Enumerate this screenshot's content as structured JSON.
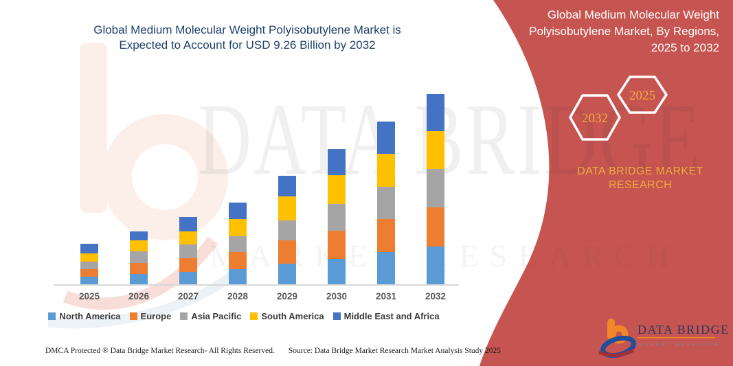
{
  "title": {
    "line1": "Global Medium Molecular Weight Polyisobutylene Market is",
    "line2": "Expected to Account for USD 9.26 Billion by 2032"
  },
  "right_panel": {
    "title_line1": "Global Medium Molecular Weight",
    "title_line2": "Polyisobutylene Market, By Regions,",
    "title_line3": "2025 to 2032",
    "hexagons": [
      {
        "label": "2032"
      },
      {
        "label": "2025"
      }
    ],
    "brand_line1": "DATA BRIDGE MARKET",
    "brand_line2": "RESEARCH",
    "logo": {
      "title": "DATA BRIDGE",
      "subtitle": "MARKET RESEARCH"
    }
  },
  "watermark": {
    "line1": "DATA BRIDGE",
    "line2": "MARKET RESEARCH"
  },
  "footer": {
    "left": "DMCA Protected ® Data Bridge Market Research-  All Rights Reserved.",
    "right": "Source: Data Bridge Market Research  Market Analysis Study 2025"
  },
  "colors": {
    "panel_red": "#C65450",
    "accent_gold": "#F2AC3C",
    "title_navy": "#20406B",
    "axis_gray": "#D8D8D8",
    "x_label_gray": "#595959",
    "legend_text": "#3B3B3B"
  },
  "chart_data": {
    "type": "bar",
    "stacked": true,
    "unit": "USD Billion",
    "title": "Global Medium Molecular Weight Polyisobutylene Market is Expected to Account for USD 9.26 Billion by 2032",
    "categories": [
      "2025",
      "2026",
      "2027",
      "2028",
      "2029",
      "2030",
      "2031",
      "2032"
    ],
    "series": [
      {
        "name": "North America",
        "color": "#5B9BD5",
        "values": [
          0.37,
          0.51,
          0.61,
          0.73,
          1.0,
          1.25,
          1.58,
          1.85
        ]
      },
      {
        "name": "Europe",
        "color": "#ED7D31",
        "values": [
          0.37,
          0.52,
          0.67,
          0.84,
          1.14,
          1.37,
          1.59,
          1.89
        ]
      },
      {
        "name": "Asia Pacific",
        "color": "#A5A5A5",
        "values": [
          0.38,
          0.56,
          0.67,
          0.78,
          0.98,
          1.28,
          1.59,
          1.87
        ]
      },
      {
        "name": "South America",
        "color": "#FFC000",
        "values": [
          0.37,
          0.56,
          0.61,
          0.84,
          1.17,
          1.43,
          1.58,
          1.84
        ]
      },
      {
        "name": "Middle East and Africa",
        "color": "#4472C4",
        "values": [
          0.48,
          0.44,
          0.73,
          0.78,
          1.0,
          1.27,
          1.58,
          1.81
        ]
      }
    ],
    "totals": [
      1.97,
      2.59,
      3.29,
      3.97,
      5.29,
      6.6,
      7.92,
      9.26
    ],
    "highlight": {
      "year": "2032",
      "value": "USD 9.26 Billion"
    },
    "ylim": [
      0,
      9.26
    ],
    "gridlines": false,
    "legend_position": "bottom"
  }
}
